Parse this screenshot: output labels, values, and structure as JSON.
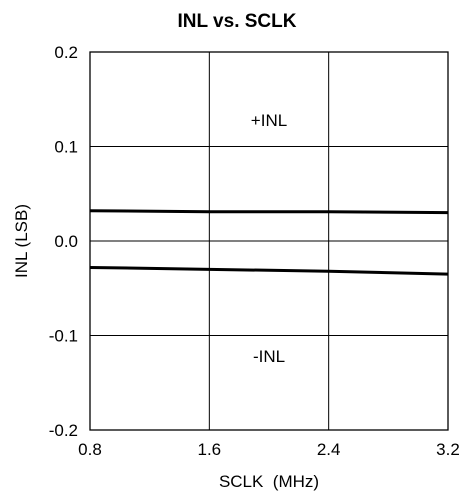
{
  "chart_data": {
    "type": "line",
    "title": "INL vs. SCLK",
    "xlabel": "SCLK  (MHz)",
    "ylabel": "INL (LSB)",
    "xlim": [
      0.8,
      3.2
    ],
    "ylim": [
      -0.2,
      0.2
    ],
    "xticks": [
      "0.8",
      "1.6",
      "2.4",
      "3.2"
    ],
    "yticks": [
      "0.2",
      "0.1",
      "0.0",
      "-0.1",
      "-0.2"
    ],
    "grid": true,
    "legend": "none",
    "annotations": [
      "+INL",
      "-INL"
    ],
    "series": [
      {
        "name": "+INL",
        "x": [
          0.8,
          1.6,
          2.4,
          3.2
        ],
        "y": [
          0.032,
          0.031,
          0.031,
          0.03
        ]
      },
      {
        "name": "-INL",
        "x": [
          0.8,
          1.6,
          2.4,
          3.2
        ],
        "y": [
          -0.028,
          -0.03,
          -0.032,
          -0.035
        ]
      }
    ]
  }
}
